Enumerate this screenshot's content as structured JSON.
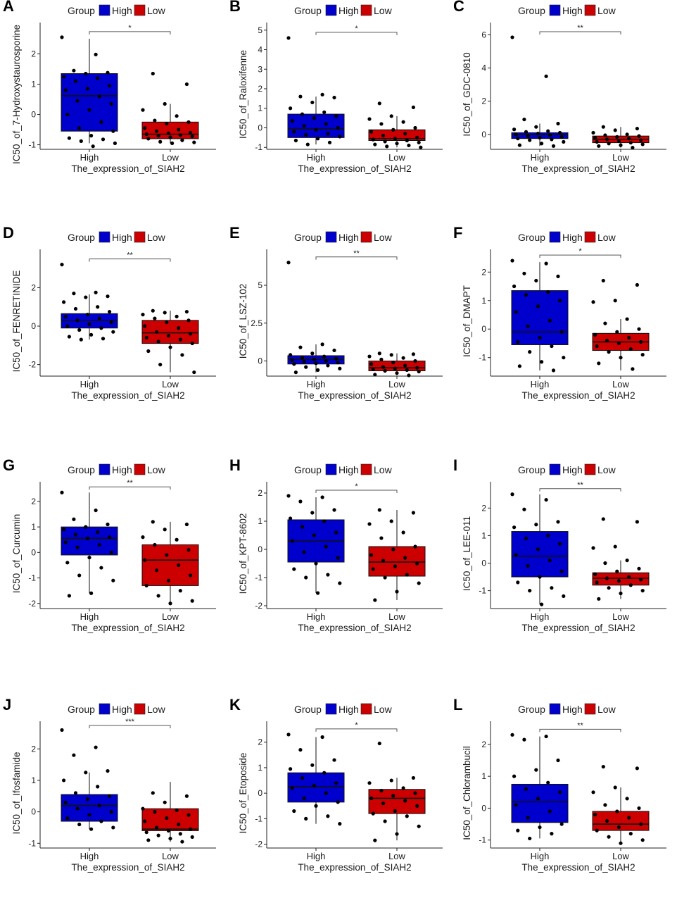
{
  "figure": {
    "legend": {
      "title": "Group",
      "items": [
        {
          "label": "High",
          "color": "#0000cc"
        },
        {
          "label": "Low",
          "color": "#cc0000"
        }
      ]
    },
    "xlabel": "The_expression_of_SIAH2",
    "categories": [
      "High",
      "Low"
    ]
  },
  "chart_data": [
    {
      "panel": "A",
      "type": "boxplot",
      "ylabel": "IC50_of_7-Hydroxystaurosporine",
      "ylim": [
        -1.15,
        2.85
      ],
      "yticks": [
        -1,
        0,
        1,
        2
      ],
      "yticklabels": [
        "-1",
        "0",
        "1",
        "2"
      ],
      "sig": "*",
      "series": [
        {
          "name": "High",
          "box": {
            "min": -0.95,
            "q1": -0.55,
            "median": 0.62,
            "q3": 1.35,
            "max": 2.5
          },
          "points": [
            2.55,
            1.98,
            1.45,
            1.38,
            1.35,
            1.25,
            1.2,
            1.1,
            0.95,
            0.85,
            0.8,
            0.6,
            0.45,
            0.35,
            0.15,
            0.0,
            -0.25,
            -0.45,
            -0.55,
            -0.7,
            -0.78,
            -0.82,
            -0.88,
            -0.95,
            -1.05
          ]
        },
        {
          "name": "Low",
          "box": {
            "min": -0.95,
            "q1": -0.8,
            "median": -0.65,
            "q3": -0.25,
            "max": 0.35
          },
          "points": [
            1.35,
            1.0,
            0.35,
            0.15,
            -0.05,
            -0.2,
            -0.25,
            -0.3,
            -0.45,
            -0.5,
            -0.55,
            -0.6,
            -0.62,
            -0.65,
            -0.68,
            -0.7,
            -0.72,
            -0.75,
            -0.8,
            -0.85,
            -0.9,
            -0.92,
            -0.95
          ]
        }
      ]
    },
    {
      "panel": "B",
      "type": "boxplot",
      "ylabel": "IC50_of_Raloxifenne",
      "ylim": [
        -1.1,
        5.1
      ],
      "yticks": [
        -1,
        0,
        1,
        2,
        3,
        4,
        5
      ],
      "yticklabels": [
        "-1",
        "0",
        "1",
        "2",
        "3",
        "4",
        "5"
      ],
      "sig": "*",
      "series": [
        {
          "name": "High",
          "box": {
            "min": -0.85,
            "q1": -0.5,
            "median": -0.05,
            "q3": 0.7,
            "max": 1.6
          },
          "points": [
            4.6,
            1.7,
            1.6,
            1.55,
            1.3,
            1.0,
            0.8,
            0.7,
            0.6,
            0.5,
            0.35,
            0.2,
            0.1,
            0.0,
            -0.1,
            -0.2,
            -0.3,
            -0.35,
            -0.45,
            -0.55,
            -0.65,
            -0.75,
            -0.85
          ]
        },
        {
          "name": "Low",
          "box": {
            "min": -1.0,
            "q1": -0.65,
            "median": -0.55,
            "q3": -0.1,
            "max": 0.6
          },
          "points": [
            1.25,
            1.05,
            0.6,
            0.45,
            0.3,
            0.2,
            0.0,
            -0.1,
            -0.2,
            -0.3,
            -0.4,
            -0.5,
            -0.55,
            -0.6,
            -0.65,
            -0.7,
            -0.75,
            -0.8,
            -0.85,
            -0.9,
            -0.95,
            -1.0
          ]
        }
      ]
    },
    {
      "panel": "C",
      "type": "boxplot",
      "ylabel": "IC50_of_GDC-0810",
      "ylim": [
        -0.9,
        6.4
      ],
      "yticks": [
        0,
        2,
        4,
        6
      ],
      "yticklabels": [
        "0",
        "2",
        "4",
        "6"
      ],
      "sig": "**",
      "series": [
        {
          "name": "High",
          "box": {
            "min": -0.7,
            "q1": -0.25,
            "median": 0.0,
            "q3": 0.1,
            "max": 0.65
          },
          "points": [
            5.85,
            3.5,
            0.9,
            0.65,
            0.45,
            0.3,
            0.2,
            0.15,
            0.1,
            0.05,
            0.0,
            -0.05,
            -0.1,
            -0.15,
            -0.2,
            -0.25,
            -0.3,
            -0.35,
            -0.45,
            -0.55,
            -0.65,
            -0.7
          ]
        },
        {
          "name": "Low",
          "box": {
            "min": -0.8,
            "q1": -0.5,
            "median": -0.3,
            "q3": -0.1,
            "max": 0.45
          },
          "points": [
            0.45,
            0.35,
            0.25,
            0.1,
            0.0,
            -0.05,
            -0.1,
            -0.15,
            -0.2,
            -0.25,
            -0.3,
            -0.35,
            -0.4,
            -0.45,
            -0.5,
            -0.55,
            -0.6,
            -0.65,
            -0.7,
            -0.8
          ]
        }
      ]
    },
    {
      "panel": "D",
      "type": "boxplot",
      "ylabel": "IC50_of_FENRETINIDE",
      "ylim": [
        -2.6,
        3.7
      ],
      "yticks": [
        -2,
        0,
        2
      ],
      "yticklabels": [
        "-2",
        "0",
        "2"
      ],
      "sig": "**",
      "series": [
        {
          "name": "High",
          "box": {
            "min": -0.7,
            "q1": -0.1,
            "median": 0.3,
            "q3": 0.65,
            "max": 1.65
          },
          "points": [
            3.2,
            1.75,
            1.7,
            1.55,
            1.5,
            1.25,
            1.0,
            0.9,
            0.75,
            0.6,
            0.5,
            0.4,
            0.3,
            0.2,
            0.1,
            0.0,
            -0.1,
            -0.2,
            -0.3,
            -0.45,
            -0.55,
            -0.65,
            -0.7
          ]
        },
        {
          "name": "Low",
          "box": {
            "min": -2.4,
            "q1": -0.9,
            "median": -0.35,
            "q3": 0.3,
            "max": 0.8
          },
          "points": [
            0.8,
            0.75,
            0.7,
            0.6,
            0.5,
            0.4,
            0.3,
            0.2,
            0.0,
            -0.1,
            -0.3,
            -0.4,
            -0.5,
            -0.6,
            -0.7,
            -0.8,
            -0.9,
            -1.1,
            -1.3,
            -1.5,
            -2.0,
            -2.4
          ]
        }
      ]
    },
    {
      "panel": "E",
      "type": "boxplot",
      "ylabel": "IC50_of_LSZ-102",
      "ylim": [
        -1.0,
        7.0
      ],
      "yticks": [
        0,
        2.5,
        5
      ],
      "yticklabels": [
        "0",
        "2.5",
        "5"
      ],
      "sig": "**",
      "series": [
        {
          "name": "High",
          "box": {
            "min": -0.75,
            "q1": -0.2,
            "median": 0.1,
            "q3": 0.35,
            "max": 1.1
          },
          "points": [
            6.5,
            1.1,
            0.9,
            0.7,
            0.5,
            0.4,
            0.3,
            0.2,
            0.15,
            0.1,
            0.05,
            0.0,
            -0.05,
            -0.1,
            -0.15,
            -0.2,
            -0.3,
            -0.4,
            -0.5,
            -0.6,
            -0.75
          ]
        },
        {
          "name": "Low",
          "box": {
            "min": -0.95,
            "q1": -0.65,
            "median": -0.45,
            "q3": 0.0,
            "max": 0.5
          },
          "points": [
            0.5,
            0.45,
            0.4,
            0.3,
            0.2,
            0.1,
            0.0,
            -0.1,
            -0.2,
            -0.3,
            -0.4,
            -0.45,
            -0.5,
            -0.55,
            -0.6,
            -0.65,
            -0.7,
            -0.8,
            -0.9,
            -0.95
          ]
        }
      ]
    },
    {
      "panel": "F",
      "type": "boxplot",
      "ylabel": "IC50_of_DMAPT",
      "ylim": [
        -1.65,
        2.6
      ],
      "yticks": [
        -1,
        0,
        1,
        2
      ],
      "yticklabels": [
        "-1",
        "0",
        "1",
        "2"
      ],
      "sig": "*",
      "series": [
        {
          "name": "High",
          "box": {
            "min": -1.45,
            "q1": -0.55,
            "median": -0.1,
            "q3": 1.35,
            "max": 2.35
          },
          "points": [
            2.4,
            2.3,
            1.95,
            1.85,
            1.7,
            1.5,
            1.3,
            1.2,
            1.0,
            0.8,
            0.6,
            0.3,
            0.1,
            -0.1,
            -0.3,
            -0.45,
            -0.6,
            -0.8,
            -1.0,
            -1.15,
            -1.3,
            -1.45
          ]
        },
        {
          "name": "Low",
          "box": {
            "min": -1.45,
            "q1": -0.75,
            "median": -0.45,
            "q3": -0.15,
            "max": 0.35
          },
          "points": [
            1.7,
            1.55,
            1.0,
            0.95,
            0.35,
            0.2,
            0.0,
            -0.1,
            -0.2,
            -0.3,
            -0.4,
            -0.45,
            -0.5,
            -0.6,
            -0.7,
            -0.8,
            -0.9,
            -1.0,
            -1.2,
            -1.4
          ]
        }
      ]
    },
    {
      "panel": "G",
      "type": "boxplot",
      "ylabel": "IC50_of_Curcumin",
      "ylim": [
        -2.2,
        2.55
      ],
      "yticks": [
        -2,
        -1,
        0,
        1,
        2
      ],
      "yticklabels": [
        "-2",
        "-1",
        "0",
        "1",
        "2"
      ],
      "sig": "**",
      "series": [
        {
          "name": "High",
          "box": {
            "min": -1.6,
            "q1": -0.1,
            "median": 0.55,
            "q3": 1.0,
            "max": 2.35
          },
          "points": [
            2.35,
            1.65,
            1.3,
            1.1,
            1.0,
            0.9,
            0.8,
            0.7,
            0.6,
            0.55,
            0.4,
            0.3,
            0.2,
            0.0,
            -0.2,
            -0.4,
            -0.6,
            -0.9,
            -1.1,
            -1.6,
            -1.7
          ]
        },
        {
          "name": "Low",
          "box": {
            "min": -2.0,
            "q1": -1.3,
            "median": -0.3,
            "q3": 0.3,
            "max": 1.2
          },
          "points": [
            1.2,
            1.1,
            0.9,
            0.6,
            0.5,
            0.3,
            0.1,
            -0.1,
            -0.3,
            -0.5,
            -0.7,
            -0.9,
            -1.1,
            -1.3,
            -1.5,
            -1.7,
            -1.9,
            -2.0
          ]
        }
      ]
    },
    {
      "panel": "H",
      "type": "boxplot",
      "ylabel": "IC50_of_KPT-8602",
      "ylim": [
        -2.1,
        2.2
      ],
      "yticks": [
        -2,
        -1,
        0,
        1,
        2
      ],
      "yticklabels": [
        "-2",
        "-1",
        "0",
        "1",
        "2"
      ],
      "sig": "*",
      "series": [
        {
          "name": "High",
          "box": {
            "min": -1.55,
            "q1": -0.45,
            "median": 0.3,
            "q3": 1.05,
            "max": 1.85
          },
          "points": [
            1.9,
            1.85,
            1.7,
            1.4,
            1.3,
            1.1,
            1.0,
            0.8,
            0.6,
            0.5,
            0.3,
            0.1,
            -0.1,
            -0.3,
            -0.5,
            -0.7,
            -0.9,
            -1.0,
            -1.2,
            -1.55
          ]
        },
        {
          "name": "Low",
          "box": {
            "min": -1.8,
            "q1": -0.95,
            "median": -0.45,
            "q3": 0.1,
            "max": 1.4
          },
          "points": [
            1.4,
            1.3,
            1.0,
            0.9,
            0.6,
            0.4,
            0.1,
            0.0,
            -0.2,
            -0.3,
            -0.4,
            -0.5,
            -0.6,
            -0.7,
            -0.9,
            -1.0,
            -1.2,
            -1.5,
            -1.8
          ]
        }
      ]
    },
    {
      "panel": "I",
      "type": "boxplot",
      "ylabel": "IC50_of_LEE-011",
      "ylim": [
        -1.65,
        2.75
      ],
      "yticks": [
        -1,
        0,
        1,
        2
      ],
      "yticklabels": [
        "-1",
        "0",
        "1",
        "2"
      ],
      "sig": "**",
      "series": [
        {
          "name": "High",
          "box": {
            "min": -1.5,
            "q1": -0.5,
            "median": 0.25,
            "q3": 1.15,
            "max": 2.5
          },
          "points": [
            2.5,
            2.3,
            1.95,
            1.5,
            1.4,
            1.3,
            1.0,
            0.9,
            0.7,
            0.5,
            0.3,
            0.1,
            -0.1,
            -0.3,
            -0.5,
            -0.7,
            -0.9,
            -1.0,
            -1.2,
            -1.5
          ]
        },
        {
          "name": "Low",
          "box": {
            "min": -1.3,
            "q1": -0.8,
            "median": -0.55,
            "q3": -0.35,
            "max": 0.1
          },
          "points": [
            1.6,
            1.5,
            0.6,
            0.55,
            0.1,
            0.0,
            -0.2,
            -0.3,
            -0.4,
            -0.5,
            -0.55,
            -0.6,
            -0.65,
            -0.7,
            -0.8,
            -0.9,
            -1.0,
            -1.1,
            -1.3
          ]
        }
      ]
    },
    {
      "panel": "J",
      "type": "boxplot",
      "ylabel": "IC50_of_Ifosfamide",
      "ylim": [
        -1.15,
        2.7
      ],
      "yticks": [
        -1,
        0,
        1,
        2
      ],
      "yticklabels": [
        "-1",
        "0",
        "1",
        "2"
      ],
      "sig": "***",
      "series": [
        {
          "name": "High",
          "box": {
            "min": -0.55,
            "q1": -0.3,
            "median": 0.2,
            "q3": 0.55,
            "max": 1.25
          },
          "points": [
            2.6,
            2.05,
            1.8,
            1.3,
            1.25,
            1.0,
            0.8,
            0.6,
            0.5,
            0.4,
            0.3,
            0.2,
            0.1,
            0.0,
            -0.1,
            -0.2,
            -0.3,
            -0.4,
            -0.5,
            -0.55
          ]
        },
        {
          "name": "Low",
          "box": {
            "min": -0.95,
            "q1": -0.6,
            "median": -0.55,
            "q3": 0.1,
            "max": 0.95
          },
          "points": [
            0.6,
            0.5,
            0.3,
            0.1,
            0.05,
            0.0,
            -0.1,
            -0.2,
            -0.3,
            -0.4,
            -0.5,
            -0.55,
            -0.6,
            -0.65,
            -0.7,
            -0.75,
            -0.8,
            -0.85,
            -0.9,
            -0.95
          ]
        }
      ]
    },
    {
      "panel": "K",
      "type": "boxplot",
      "ylabel": "IC50_of_Etoposide",
      "ylim": [
        -2.15,
        2.6
      ],
      "yticks": [
        -2,
        -1,
        0,
        1,
        2
      ],
      "yticklabels": [
        "-2",
        "-1",
        "0",
        "1",
        "2"
      ],
      "sig": "*",
      "series": [
        {
          "name": "High",
          "box": {
            "min": -1.2,
            "q1": -0.35,
            "median": 0.25,
            "q3": 0.8,
            "max": 2.2
          },
          "points": [
            2.3,
            2.2,
            1.7,
            1.3,
            1.1,
            0.95,
            0.8,
            0.6,
            0.4,
            0.3,
            0.2,
            0.0,
            -0.2,
            -0.35,
            -0.5,
            -0.7,
            -0.9,
            -1.0,
            -1.2
          ]
        },
        {
          "name": "Low",
          "box": {
            "min": -1.85,
            "q1": -0.8,
            "median": -0.2,
            "q3": 0.15,
            "max": 0.6
          },
          "points": [
            1.95,
            0.6,
            0.5,
            0.4,
            0.2,
            0.1,
            0.0,
            -0.1,
            -0.2,
            -0.3,
            -0.4,
            -0.5,
            -0.7,
            -0.8,
            -0.9,
            -1.1,
            -1.3,
            -1.6,
            -1.85
          ]
        }
      ]
    },
    {
      "panel": "L",
      "type": "boxplot",
      "ylabel": "IC50_of_Chlorambucil",
      "ylim": [
        -1.25,
        2.55
      ],
      "yticks": [
        -1,
        0,
        1,
        2
      ],
      "yticklabels": [
        "-1",
        "0",
        "1",
        "2"
      ],
      "sig": "**",
      "series": [
        {
          "name": "High",
          "box": {
            "min": -0.95,
            "q1": -0.45,
            "median": 0.2,
            "q3": 0.75,
            "max": 2.25
          },
          "points": [
            2.3,
            2.25,
            2.15,
            1.5,
            1.2,
            1.0,
            0.8,
            0.6,
            0.5,
            0.3,
            0.1,
            -0.1,
            -0.3,
            -0.5,
            -0.6,
            -0.7,
            -0.8,
            -0.95
          ]
        },
        {
          "name": "Low",
          "box": {
            "min": -1.1,
            "q1": -0.7,
            "median": -0.5,
            "q3": -0.1,
            "max": 0.65
          },
          "points": [
            1.3,
            1.25,
            0.65,
            0.5,
            0.3,
            0.1,
            0.0,
            -0.1,
            -0.2,
            -0.3,
            -0.4,
            -0.5,
            -0.6,
            -0.7,
            -0.8,
            -0.9,
            -1.0,
            -1.1
          ]
        }
      ]
    }
  ]
}
